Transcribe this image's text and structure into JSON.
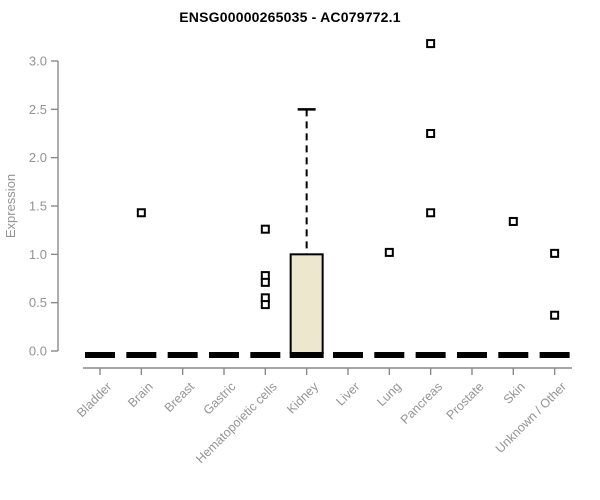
{
  "chart_data": {
    "type": "boxplot",
    "title": "ENSG00000265035 - AC079772.1",
    "xlabel": "",
    "ylabel": "Expression",
    "ylim": [
      0,
      3.2
    ],
    "yticks": [
      0.0,
      0.5,
      1.0,
      1.5,
      2.0,
      2.5,
      3.0
    ],
    "grid": false,
    "legend": null,
    "categories": [
      "Bladder",
      "Brain",
      "Breast",
      "Gastric",
      "Hematopoietic cells",
      "Kidney",
      "Liver",
      "Lung",
      "Pancreas",
      "Prostate",
      "Skin",
      "Unknown / Other"
    ],
    "boxes": [
      {
        "category": "Bladder",
        "median": 0,
        "q1": 0,
        "q3": 0,
        "whisker_low": 0,
        "whisker_high": 0,
        "outliers": []
      },
      {
        "category": "Brain",
        "median": 0,
        "q1": 0,
        "q3": 0,
        "whisker_low": 0,
        "whisker_high": 0,
        "outliers": [
          1.43
        ]
      },
      {
        "category": "Breast",
        "median": 0,
        "q1": 0,
        "q3": 0,
        "whisker_low": 0,
        "whisker_high": 0,
        "outliers": []
      },
      {
        "category": "Gastric",
        "median": 0,
        "q1": 0,
        "q3": 0,
        "whisker_low": 0,
        "whisker_high": 0,
        "outliers": []
      },
      {
        "category": "Hematopoietic cells",
        "median": 0,
        "q1": 0,
        "q3": 0,
        "whisker_low": 0,
        "whisker_high": 0,
        "outliers": [
          1.26,
          0.78,
          0.71,
          0.55,
          0.48
        ]
      },
      {
        "category": "Kidney",
        "median": 0,
        "q1": 0,
        "q3": 1.0,
        "whisker_low": 0,
        "whisker_high": 2.5,
        "outliers": []
      },
      {
        "category": "Liver",
        "median": 0,
        "q1": 0,
        "q3": 0,
        "whisker_low": 0,
        "whisker_high": 0,
        "outliers": []
      },
      {
        "category": "Lung",
        "median": 0,
        "q1": 0,
        "q3": 0,
        "whisker_low": 0,
        "whisker_high": 0,
        "outliers": [
          1.02
        ]
      },
      {
        "category": "Pancreas",
        "median": 0,
        "q1": 0,
        "q3": 0,
        "whisker_low": 0,
        "whisker_high": 0,
        "outliers": [
          3.18,
          2.25,
          1.43
        ]
      },
      {
        "category": "Prostate",
        "median": 0,
        "q1": 0,
        "q3": 0,
        "whisker_low": 0,
        "whisker_high": 0,
        "outliers": []
      },
      {
        "category": "Skin",
        "median": 0,
        "q1": 0,
        "q3": 0,
        "whisker_low": 0,
        "whisker_high": 0,
        "outliers": [
          1.34
        ]
      },
      {
        "category": "Unknown / Other",
        "median": 0,
        "q1": 0,
        "q3": 0,
        "whisker_low": 0,
        "whisker_high": 0,
        "outliers": [
          1.01,
          0.37
        ]
      }
    ],
    "colors": {
      "box_fill": "#EDE7CD",
      "box_stroke": "#000000",
      "median": "#000000",
      "whisker": "#000000",
      "outlier_stroke": "#000000",
      "outlier_fill": "#ffffff",
      "axis": "#8a8a8a",
      "tick_label": "#949494",
      "title": "#000000",
      "background": "#ffffff"
    }
  }
}
